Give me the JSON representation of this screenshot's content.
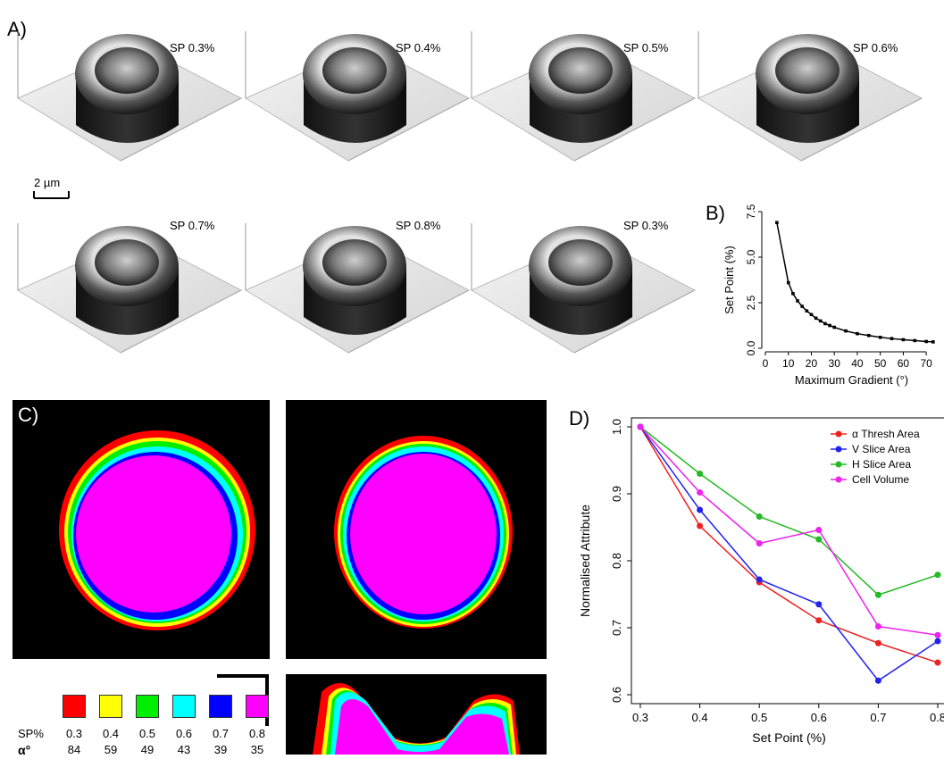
{
  "panels": {
    "a_label": "A)",
    "b_label": "B)",
    "c_label": "C)",
    "d_label": "D)"
  },
  "afm_tiles": [
    "SP 0.3%",
    "SP 0.4%",
    "SP 0.5%",
    "SP 0.6%",
    "SP 0.7%",
    "SP 0.8%",
    "SP 0.3%"
  ],
  "scale_bar_label": "2 µm",
  "legend_c": {
    "row1_label": "SP%",
    "row2_label": "α°",
    "sp_values": [
      "0.3",
      "0.4",
      "0.5",
      "0.6",
      "0.7",
      "0.8"
    ],
    "alpha_values": [
      "84",
      "59",
      "49",
      "43",
      "39",
      "35"
    ],
    "colors": [
      "#ff0000",
      "#ffff00",
      "#00ee00",
      "#00ffff",
      "#0000ff",
      "#ff00ff"
    ]
  },
  "chart_data": [
    {
      "type": "line",
      "panel": "B",
      "xlabel": "Maximum Gradient (°)",
      "ylabel": "Set Point (%)",
      "xlim": [
        0,
        75
      ],
      "ylim": [
        0,
        7.5
      ],
      "xticks": [
        "0",
        "10",
        "20",
        "30",
        "40",
        "50",
        "60",
        "70"
      ],
      "yticks": [
        "0.0",
        "2.5",
        "5.0",
        "7.5"
      ],
      "x": [
        5,
        10,
        12,
        14,
        16,
        18,
        20,
        22,
        24,
        26,
        28,
        30,
        35,
        40,
        45,
        50,
        55,
        60,
        65,
        70,
        73
      ],
      "y": [
        6.9,
        3.6,
        3.0,
        2.6,
        2.3,
        2.05,
        1.85,
        1.65,
        1.5,
        1.35,
        1.25,
        1.15,
        0.95,
        0.8,
        0.7,
        0.6,
        0.53,
        0.47,
        0.42,
        0.37,
        0.35
      ]
    },
    {
      "type": "line",
      "panel": "D",
      "xlabel": "Set Point (%)",
      "ylabel": "Normalised Attribute",
      "categories": [
        "0.3",
        "0.4",
        "0.5",
        "0.6",
        "0.7",
        "0.8"
      ],
      "ylim": [
        0.6,
        1.0
      ],
      "yticks": [
        "0.6",
        "0.7",
        "0.8",
        "0.9",
        "1.0"
      ],
      "legend_position": "top-right",
      "series": [
        {
          "name": "α Thresh Area",
          "color": "#ee2222",
          "values": [
            1.0,
            0.852,
            0.768,
            0.711,
            0.677,
            0.648
          ]
        },
        {
          "name": "V Slice Area",
          "color": "#2222ee",
          "values": [
            1.0,
            0.876,
            0.772,
            0.735,
            0.621,
            0.68
          ]
        },
        {
          "name": "H Slice Area",
          "color": "#22bb22",
          "values": [
            1.0,
            0.93,
            0.866,
            0.832,
            0.749,
            0.779
          ]
        },
        {
          "name": "Cell Volume",
          "color": "#ee22ee",
          "values": [
            1.0,
            0.902,
            0.826,
            0.846,
            0.702,
            0.689
          ]
        }
      ]
    }
  ]
}
